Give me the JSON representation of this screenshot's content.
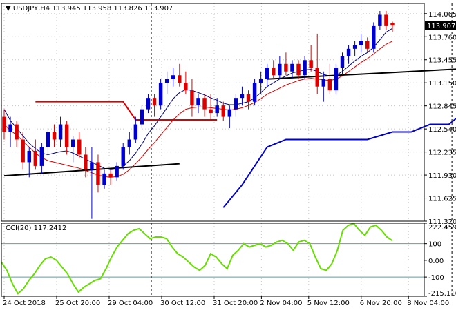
{
  "main_panel": {
    "header": "▼ USDJPY,H4  113.945 113.958 113.826 113.907",
    "price_marker": "113.907",
    "y_axis_labels": [
      "114.065",
      "113.760",
      "113.455",
      "113.150",
      "112.845",
      "112.540",
      "112.235",
      "111.930",
      "111.625",
      "111.320"
    ]
  },
  "cci_panel": {
    "header": "CCI(20) 117.2412",
    "y_axis_labels": [
      "222.4598",
      "100",
      "0.00",
      "-100",
      "-215.1168"
    ],
    "levels": [
      100,
      -100
    ],
    "ylim": [
      -215.1168,
      222.4598
    ]
  },
  "x_axis_labels": [
    "24 Oct 2018",
    "25 Oct 20:00",
    "29 Oct 04:00",
    "30 Oct 12:00",
    "31 Oct 20:00",
    "2 Nov 04:00",
    "5 Nov 12:00",
    "6 Nov 20:00",
    "8 Nov 04:00"
  ],
  "colors": {
    "bull_candle": "#0000cc",
    "bear_candle": "#dd0000",
    "ma_fast": "#000080",
    "ma_slow": "#dd0000",
    "support": "#0000cc",
    "resistance": "#dd0000",
    "trendline": "#000000",
    "cci": "#66dd00",
    "level_line": "#5f9ea0"
  },
  "chart_data": [
    {
      "type": "candlestick",
      "symbol": "USDJPY",
      "timeframe": "H4",
      "ylim": [
        111.32,
        114.2
      ],
      "ohlc_last": {
        "open": 113.945,
        "high": 113.958,
        "low": 113.826,
        "close": 113.907
      },
      "candles": [
        [
          112.7,
          112.8,
          112.4,
          112.5
        ],
        [
          112.5,
          112.7,
          112.3,
          112.6
        ],
        [
          112.6,
          112.65,
          112.3,
          112.4
        ],
        [
          112.4,
          112.5,
          112.0,
          112.1
        ],
        [
          112.1,
          112.3,
          111.9,
          112.25
        ],
        [
          112.25,
          112.4,
          112.0,
          112.05
        ],
        [
          112.05,
          112.35,
          111.95,
          112.3
        ],
        [
          112.3,
          112.55,
          112.2,
          112.5
        ],
        [
          112.5,
          112.6,
          112.3,
          112.4
        ],
        [
          112.4,
          112.7,
          112.3,
          112.6
        ],
        [
          112.6,
          112.65,
          112.2,
          112.3
        ],
        [
          112.3,
          112.45,
          112.1,
          112.4
        ],
        [
          112.4,
          112.5,
          112.15,
          112.2
        ],
        [
          112.2,
          112.3,
          111.9,
          112.0
        ],
        [
          112.0,
          112.3,
          111.35,
          112.1
        ],
        [
          112.1,
          112.2,
          111.7,
          111.8
        ],
        [
          111.8,
          112.0,
          111.75,
          111.95
        ],
        [
          111.95,
          112.0,
          111.8,
          111.9
        ],
        [
          111.9,
          112.1,
          111.85,
          112.05
        ],
        [
          112.05,
          112.35,
          112.0,
          112.3
        ],
        [
          112.3,
          112.5,
          112.2,
          112.4
        ],
        [
          112.4,
          112.7,
          112.35,
          112.6
        ],
        [
          112.6,
          112.85,
          112.55,
          112.8
        ],
        [
          112.8,
          113.0,
          112.75,
          112.95
        ],
        [
          112.95,
          113.0,
          112.7,
          112.85
        ],
        [
          112.85,
          113.2,
          112.8,
          113.15
        ],
        [
          113.15,
          113.3,
          113.0,
          113.2
        ],
        [
          113.2,
          113.35,
          113.1,
          113.25
        ],
        [
          113.25,
          113.4,
          113.1,
          113.15
        ],
        [
          113.15,
          113.3,
          113.0,
          113.05
        ],
        [
          113.05,
          113.2,
          112.7,
          112.85
        ],
        [
          112.85,
          113.0,
          112.75,
          112.95
        ],
        [
          112.95,
          113.0,
          112.7,
          112.8
        ],
        [
          112.8,
          113.0,
          112.65,
          112.75
        ],
        [
          112.75,
          112.95,
          112.7,
          112.85
        ],
        [
          112.85,
          112.9,
          112.65,
          112.7
        ],
        [
          112.7,
          112.85,
          112.55,
          112.8
        ],
        [
          112.8,
          113.0,
          112.7,
          112.95
        ],
        [
          112.95,
          113.1,
          112.85,
          113.0
        ],
        [
          113.0,
          113.05,
          112.8,
          112.9
        ],
        [
          112.9,
          113.2,
          112.85,
          113.15
        ],
        [
          113.15,
          113.3,
          113.0,
          113.2
        ],
        [
          113.2,
          113.4,
          113.1,
          113.35
        ],
        [
          113.35,
          113.45,
          113.2,
          113.25
        ],
        [
          113.25,
          113.5,
          113.2,
          113.4
        ],
        [
          113.4,
          113.55,
          113.25,
          113.3
        ],
        [
          113.3,
          113.45,
          113.2,
          113.4
        ],
        [
          113.4,
          113.45,
          113.2,
          113.25
        ],
        [
          113.25,
          113.5,
          113.2,
          113.45
        ],
        [
          113.45,
          113.65,
          113.3,
          113.35
        ],
        [
          113.35,
          113.8,
          113.0,
          113.1
        ],
        [
          113.1,
          113.3,
          112.9,
          113.2
        ],
        [
          113.2,
          113.4,
          113.0,
          113.05
        ],
        [
          113.05,
          113.4,
          113.0,
          113.35
        ],
        [
          113.35,
          113.55,
          113.25,
          113.5
        ],
        [
          113.5,
          113.65,
          113.4,
          113.6
        ],
        [
          113.6,
          113.7,
          113.5,
          113.65
        ],
        [
          113.65,
          113.8,
          113.55,
          113.7
        ],
        [
          113.7,
          113.75,
          113.55,
          113.6
        ],
        [
          113.6,
          113.95,
          113.55,
          113.9
        ],
        [
          113.9,
          114.1,
          113.85,
          114.05
        ],
        [
          114.05,
          114.1,
          113.85,
          113.9
        ],
        [
          113.945,
          113.958,
          113.826,
          113.907
        ]
      ],
      "ma_fast": [
        112.8,
        112.65,
        112.55,
        112.45,
        112.35,
        112.28,
        112.22,
        112.2,
        112.22,
        112.24,
        112.25,
        112.22,
        112.18,
        112.14,
        112.1,
        112.06,
        112.02,
        112.0,
        112.01,
        112.05,
        112.12,
        112.22,
        112.34,
        112.48,
        112.58,
        112.7,
        112.82,
        112.94,
        113.02,
        113.06,
        113.05,
        113.02,
        112.99,
        112.95,
        112.92,
        112.88,
        112.86,
        112.86,
        112.88,
        112.9,
        112.95,
        113.02,
        113.1,
        113.15,
        113.2,
        113.24,
        113.28,
        113.3,
        113.32,
        113.33,
        113.3,
        113.26,
        113.24,
        113.25,
        113.3,
        113.37,
        113.44,
        113.5,
        113.55,
        113.62,
        113.72,
        113.82,
        113.87
      ],
      "ma_slow": [
        112.6,
        112.52,
        112.46,
        112.38,
        112.3,
        112.22,
        112.16,
        112.12,
        112.1,
        112.08,
        112.06,
        112.04,
        112.02,
        111.99,
        111.96,
        111.93,
        111.91,
        111.9,
        111.91,
        111.94,
        112.0,
        112.08,
        112.17,
        112.27,
        112.36,
        112.46,
        112.56,
        112.66,
        112.74,
        112.8,
        112.82,
        112.83,
        112.83,
        112.82,
        112.81,
        112.8,
        112.79,
        112.8,
        112.82,
        112.85,
        112.89,
        112.94,
        113.0,
        113.04,
        113.08,
        113.12,
        113.15,
        113.18,
        113.2,
        113.21,
        113.2,
        113.19,
        113.18,
        113.2,
        113.24,
        113.3,
        113.36,
        113.42,
        113.47,
        113.53,
        113.6,
        113.66,
        113.7
      ],
      "support": [
        [
          35,
          111.5
        ],
        [
          38,
          111.8
        ],
        [
          42,
          112.3
        ],
        [
          45,
          112.4
        ],
        [
          52,
          112.4
        ],
        [
          58,
          112.4
        ],
        [
          62,
          112.5
        ],
        [
          65,
          112.5
        ],
        [
          68,
          112.6
        ],
        [
          71,
          112.6
        ],
        [
          74,
          112.8
        ],
        [
          77,
          112.9
        ],
        [
          80,
          112.9
        ],
        [
          85,
          112.9
        ],
        [
          90,
          112.9
        ],
        [
          95,
          112.9
        ],
        [
          98,
          112.9
        ],
        [
          100,
          113.0
        ],
        [
          102,
          113.1
        ],
        [
          104,
          113.1
        ]
      ],
      "resistance_segments": [
        [
          [
            5,
            112.9
          ],
          [
            19,
            112.9
          ],
          [
            21,
            112.66
          ],
          [
            34,
            112.66
          ]
        ]
      ],
      "trendlines": [
        [
          [
            0,
            111.92
          ],
          [
            28,
            112.08
          ]
        ],
        [
          [
            42,
            113.2
          ],
          [
            88,
            113.4
          ]
        ]
      ],
      "vertical_separators": [
        24,
        72
      ]
    },
    {
      "type": "line",
      "name": "CCI(20)",
      "ylim": [
        -215.1168,
        222.4598
      ],
      "values": [
        -10,
        -60,
        -140,
        -200,
        -170,
        -120,
        -80,
        -30,
        10,
        20,
        0,
        -40,
        -80,
        -140,
        -190,
        -160,
        -140,
        -120,
        -110,
        -50,
        20,
        80,
        120,
        160,
        180,
        190,
        160,
        130,
        140,
        140,
        130,
        80,
        40,
        20,
        -10,
        -40,
        -60,
        -30,
        40,
        20,
        -20,
        -50,
        30,
        60,
        100,
        80,
        90,
        100,
        80,
        90,
        110,
        120,
        100,
        60,
        110,
        120,
        100,
        20,
        -50,
        -60,
        -20,
        60,
        180,
        210,
        220,
        180,
        150,
        200,
        210,
        180,
        140,
        117.24
      ],
      "levels": [
        100,
        -100
      ],
      "last_value": 117.2412
    }
  ]
}
